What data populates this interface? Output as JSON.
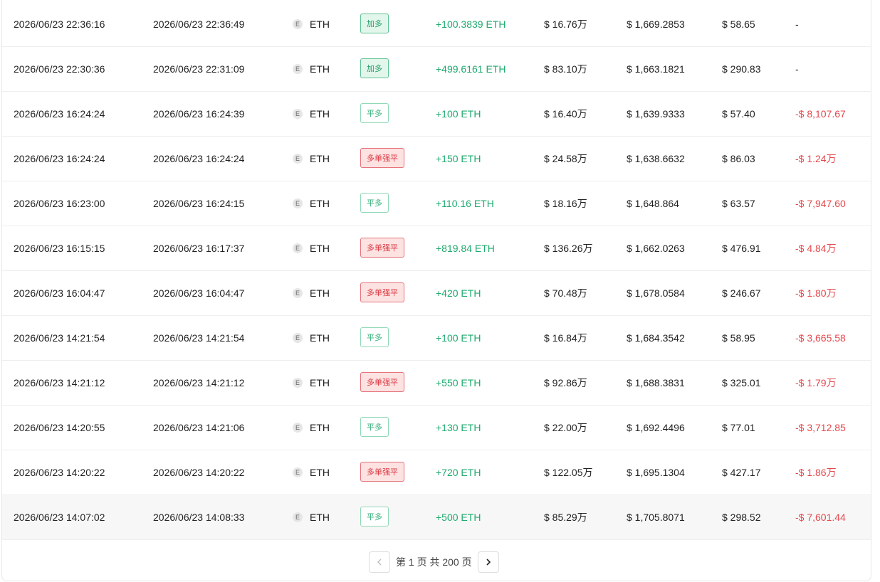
{
  "table": {
    "rows": [
      [
        "2026/06/23 22:36:16",
        "2026/06/23 22:36:49",
        "E",
        "ETH",
        {
          "label": "加多",
          "color": "#1f9d63",
          "bg": "#e3f6ec",
          "border": "#5cc293"
        },
        "+100.3839 ETH",
        "$ 16.76万",
        "$ 1,669.2853",
        "$ 58.65",
        {
          "label": "-",
          "color": "#222222"
        }
      ],
      [
        "2026/06/23 22:30:36",
        "2026/06/23 22:31:09",
        "E",
        "ETH",
        {
          "label": "加多",
          "color": "#1f9d63",
          "bg": "#e3f6ec",
          "border": "#5cc293"
        },
        "+499.6161 ETH",
        "$ 83.10万",
        "$ 1,663.1821",
        "$ 290.83",
        {
          "label": "-",
          "color": "#222222"
        }
      ],
      [
        "2026/06/23 16:24:24",
        "2026/06/23 16:24:39",
        "E",
        "ETH",
        {
          "label": "平多",
          "color": "#35b07a",
          "bg": "#ffffff",
          "border": "#8fd9b6"
        },
        "+100 ETH",
        "$ 16.40万",
        "$ 1,639.9333",
        "$ 57.40",
        {
          "label": "-$ 8,107.67",
          "color": "#e5484d"
        }
      ],
      [
        "2026/06/23 16:24:24",
        "2026/06/23 16:24:24",
        "E",
        "ETH",
        {
          "label": "多单强平",
          "color": "#d9363e",
          "bg": "#fde2e2",
          "border": "#e5737a"
        },
        "+150 ETH",
        "$ 24.58万",
        "$ 1,638.6632",
        "$ 86.03",
        {
          "label": "-$ 1.24万",
          "color": "#e5484d"
        }
      ],
      [
        "2026/06/23 16:23:00",
        "2026/06/23 16:24:15",
        "E",
        "ETH",
        {
          "label": "平多",
          "color": "#35b07a",
          "bg": "#ffffff",
          "border": "#8fd9b6"
        },
        "+110.16 ETH",
        "$ 18.16万",
        "$ 1,648.864",
        "$ 63.57",
        {
          "label": "-$ 7,947.60",
          "color": "#e5484d"
        }
      ],
      [
        "2026/06/23 16:15:15",
        "2026/06/23 16:17:37",
        "E",
        "ETH",
        {
          "label": "多单强平",
          "color": "#d9363e",
          "bg": "#fde2e2",
          "border": "#e5737a"
        },
        "+819.84 ETH",
        "$ 136.26万",
        "$ 1,662.0263",
        "$ 476.91",
        {
          "label": "-$ 4.84万",
          "color": "#e5484d"
        }
      ],
      [
        "2026/06/23 16:04:47",
        "2026/06/23 16:04:47",
        "E",
        "ETH",
        {
          "label": "多单强平",
          "color": "#d9363e",
          "bg": "#fde2e2",
          "border": "#e5737a"
        },
        "+420 ETH",
        "$ 70.48万",
        "$ 1,678.0584",
        "$ 246.67",
        {
          "label": "-$ 1.80万",
          "color": "#e5484d"
        }
      ],
      [
        "2026/06/23 14:21:54",
        "2026/06/23 14:21:54",
        "E",
        "ETH",
        {
          "label": "平多",
          "color": "#35b07a",
          "bg": "#ffffff",
          "border": "#8fd9b6"
        },
        "+100 ETH",
        "$ 16.84万",
        "$ 1,684.3542",
        "$ 58.95",
        {
          "label": "-$ 3,665.58",
          "color": "#e5484d"
        }
      ],
      [
        "2026/06/23 14:21:12",
        "2026/06/23 14:21:12",
        "E",
        "ETH",
        {
          "label": "多单强平",
          "color": "#d9363e",
          "bg": "#fde2e2",
          "border": "#e5737a"
        },
        "+550 ETH",
        "$ 92.86万",
        "$ 1,688.3831",
        "$ 325.01",
        {
          "label": "-$ 1.79万",
          "color": "#e5484d"
        }
      ],
      [
        "2026/06/23 14:20:55",
        "2026/06/23 14:21:06",
        "E",
        "ETH",
        {
          "label": "平多",
          "color": "#35b07a",
          "bg": "#ffffff",
          "border": "#8fd9b6"
        },
        "+130 ETH",
        "$ 22.00万",
        "$ 1,692.4496",
        "$ 77.01",
        {
          "label": "-$ 3,712.85",
          "color": "#e5484d"
        }
      ],
      [
        "2026/06/23 14:20:22",
        "2026/06/23 14:20:22",
        "E",
        "ETH",
        {
          "label": "多单强平",
          "color": "#d9363e",
          "bg": "#fde2e2",
          "border": "#e5737a"
        },
        "+720 ETH",
        "$ 122.05万",
        "$ 1,695.1304",
        "$ 427.17",
        {
          "label": "-$ 1.86万",
          "color": "#e5484d"
        }
      ],
      [
        "2026/06/23 14:07:02",
        "2026/06/23 14:08:33",
        "E",
        "ETH",
        {
          "label": "平多",
          "color": "#35b07a",
          "bg": "#ffffff",
          "border": "#8fd9b6"
        },
        "+500 ETH",
        "$ 85.29万",
        "$ 1,705.8071",
        "$ 298.52",
        {
          "label": "-$ 7,601.44",
          "color": "#e5484d"
        }
      ]
    ]
  },
  "pagination": {
    "text": "第 1 页 共 200 页"
  }
}
